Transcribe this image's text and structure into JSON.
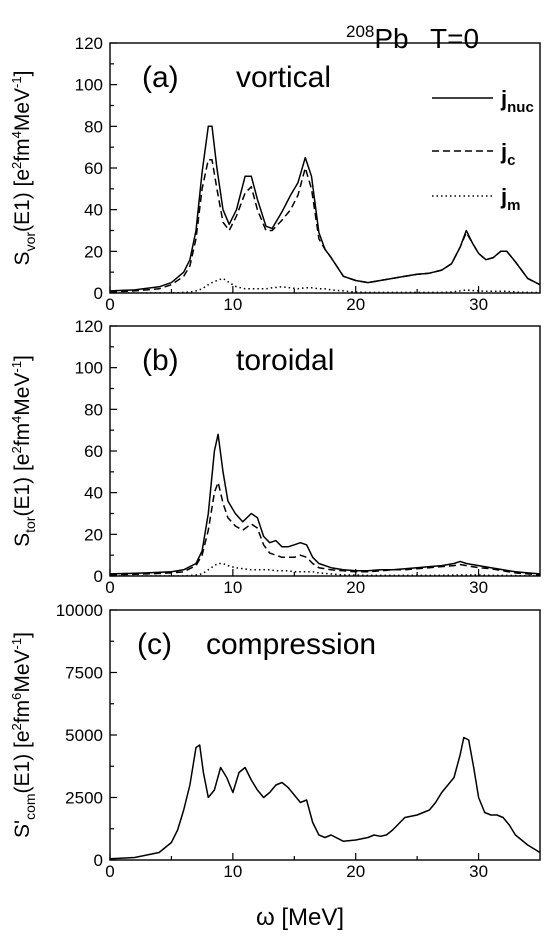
{
  "figure": {
    "title_nucleus_sup": "208",
    "title_nucleus": "Pb",
    "title_temp": "T=0",
    "xlabel": "ω [MeV]"
  },
  "legend": {
    "items": [
      {
        "main": "j",
        "sub": "nuc",
        "style": "solid"
      },
      {
        "main": "j",
        "sub": "c",
        "style": "dashed"
      },
      {
        "main": "j",
        "sub": "m",
        "style": "dotted"
      }
    ]
  },
  "chart_data": [
    {
      "type": "line",
      "panel_label": "(a)",
      "panel_name": "vortical",
      "ylabel": {
        "pre": "S",
        "sub": "vor",
        "mid": "(E1) [e",
        "sup1": "2",
        "mid2": "fm",
        "sup2": "4",
        "mid3": "MeV",
        "sup3": "-1",
        "post": "]"
      },
      "xlim": [
        0,
        35
      ],
      "ylim": [
        0,
        120
      ],
      "xticks": [
        0,
        10,
        20,
        30
      ],
      "yticks": [
        0,
        20,
        40,
        60,
        80,
        100,
        120
      ],
      "x": [
        0,
        2,
        4,
        5,
        6,
        6.5,
        7,
        7.5,
        8,
        8.3,
        8.7,
        9.2,
        9.7,
        10.3,
        11,
        11.5,
        12,
        12.7,
        13.2,
        14,
        14.7,
        15.3,
        15.9,
        16.4,
        17,
        17.5,
        18,
        19,
        20,
        21,
        22,
        23,
        24,
        25,
        26,
        27,
        27.8,
        28.5,
        29,
        29.5,
        30,
        30.6,
        31.2,
        31.8,
        32.3,
        33,
        34,
        35
      ],
      "series": [
        {
          "name": "j_nuc",
          "style": "solid",
          "values": [
            1,
            1.5,
            3,
            5,
            10,
            16,
            30,
            58,
            80,
            80,
            60,
            40,
            33,
            40,
            56,
            56,
            45,
            32,
            31,
            39,
            47,
            53,
            65,
            56,
            29,
            21,
            17,
            8,
            6,
            5,
            6,
            7,
            8,
            9,
            9.5,
            11,
            14,
            22,
            30,
            24,
            19,
            16,
            17,
            20,
            20,
            15,
            7,
            4
          ]
        },
        {
          "name": "j_c",
          "style": "dashed",
          "values": [
            0.5,
            1,
            2,
            4,
            8,
            13,
            26,
            50,
            64,
            64,
            50,
            34,
            30,
            37,
            48,
            51,
            40,
            30,
            30,
            35,
            40,
            47,
            60,
            50,
            26,
            21,
            17,
            8,
            6,
            5,
            6,
            7,
            8,
            9,
            9.5,
            11,
            14,
            22,
            29,
            24,
            19,
            16,
            17,
            20,
            20,
            15,
            7,
            4
          ]
        },
        {
          "name": "j_m",
          "style": "dotted",
          "values": [
            0,
            0,
            0,
            0,
            0.3,
            0.5,
            1,
            2,
            4,
            5,
            6,
            7,
            5,
            3,
            2,
            2,
            2,
            2,
            2.5,
            3,
            2.5,
            2,
            2.5,
            2.5,
            2,
            2,
            1.5,
            1,
            0.5,
            0.3,
            0.3,
            0.3,
            0.3,
            0.3,
            0.3,
            0.3,
            0.5,
            1,
            1.5,
            1.2,
            1,
            0.8,
            0.8,
            0.8,
            0.8,
            0.5,
            0.3,
            0.2
          ]
        }
      ]
    },
    {
      "type": "line",
      "panel_label": "(b)",
      "panel_name": "toroidal",
      "ylabel": {
        "pre": "S",
        "sub": "tor",
        "mid": "(E1) [e",
        "sup1": "2",
        "mid2": "fm",
        "sup2": "4",
        "mid3": "MeV",
        "sup3": "-1",
        "post": "]"
      },
      "xlim": [
        0,
        35
      ],
      "ylim": [
        0,
        120
      ],
      "xticks": [
        0,
        10,
        20,
        30
      ],
      "yticks": [
        0,
        20,
        40,
        60,
        80,
        100,
        120
      ],
      "x": [
        0,
        3,
        5,
        6,
        7,
        7.5,
        8,
        8.5,
        8.8,
        9.2,
        9.6,
        10.2,
        10.8,
        11.5,
        12,
        12.5,
        13,
        13.5,
        14,
        14.5,
        15,
        15.5,
        16,
        16.5,
        17,
        18,
        19,
        20,
        21,
        22,
        23,
        24,
        25,
        26,
        27,
        28,
        28.5,
        29,
        30,
        31,
        32,
        33,
        34,
        35
      ],
      "series": [
        {
          "name": "j_nuc",
          "style": "solid",
          "values": [
            1,
            1.5,
            2,
            3,
            6,
            12,
            30,
            60,
            68,
            50,
            36,
            30,
            26,
            30,
            28,
            19,
            16,
            17,
            14,
            14,
            15,
            16,
            15,
            9,
            6,
            4,
            3,
            2.5,
            2.5,
            3,
            3,
            3.5,
            4,
            4.5,
            5,
            6,
            7,
            6,
            5,
            4,
            3,
            2,
            1.5,
            1
          ]
        },
        {
          "name": "j_c",
          "style": "dashed",
          "values": [
            0.5,
            1,
            1.5,
            2,
            5,
            10,
            22,
            40,
            45,
            35,
            28,
            24,
            22,
            25,
            23,
            15,
            11,
            10,
            9,
            9,
            9,
            10,
            9,
            6,
            4,
            3,
            2.5,
            2,
            2,
            2.5,
            3,
            3,
            3.5,
            4,
            4.5,
            5,
            5.5,
            5,
            4,
            3.5,
            2.5,
            1.5,
            1,
            0.5
          ]
        },
        {
          "name": "j_m",
          "style": "dotted",
          "values": [
            0,
            0,
            0,
            0,
            0.5,
            1,
            3,
            5,
            6,
            6,
            5,
            4,
            3.5,
            3,
            3,
            3,
            3,
            2.5,
            2.5,
            2.5,
            2,
            2,
            2,
            2,
            1.5,
            1,
            0.5,
            0.5,
            0.3,
            0.3,
            0.3,
            0.3,
            0.3,
            0.3,
            0.3,
            0.5,
            0.5,
            0.5,
            0.5,
            0.3,
            0.3,
            0.2,
            0.1,
            0
          ]
        }
      ]
    },
    {
      "type": "line",
      "panel_label": "(c)",
      "panel_name": "compression",
      "ylabel": {
        "pre": "S'",
        "sub": "com",
        "mid": "(E1) [e",
        "sup1": "2",
        "mid2": "fm",
        "sup2": "6",
        "mid3": "MeV",
        "sup3": "-1",
        "post": "]"
      },
      "xlim": [
        0,
        35
      ],
      "ylim": [
        0,
        10000
      ],
      "xticks": [
        0,
        10,
        20,
        30
      ],
      "yticks": [
        0,
        2500,
        5000,
        7500,
        10000
      ],
      "x": [
        0,
        2,
        4,
        5,
        5.5,
        6,
        6.5,
        7,
        7.3,
        7.6,
        8,
        8.5,
        9,
        9.5,
        10,
        10.5,
        11,
        11.5,
        12,
        12.5,
        13,
        13.5,
        14,
        14.5,
        15,
        15.5,
        16,
        16.5,
        17,
        17.5,
        18,
        19,
        20,
        21,
        21.5,
        22,
        22.5,
        23,
        24,
        25,
        26,
        26.5,
        27,
        27.5,
        28,
        28.5,
        28.8,
        29.2,
        29.6,
        30,
        30.5,
        31,
        31.5,
        32,
        32.5,
        33,
        33.5,
        34,
        35
      ],
      "series": [
        {
          "name": "j_nuc",
          "style": "solid",
          "values": [
            50,
            100,
            300,
            700,
            1200,
            2000,
            3000,
            4500,
            4600,
            3500,
            2500,
            2800,
            3700,
            3300,
            2700,
            3500,
            3700,
            3200,
            2800,
            2500,
            2700,
            3000,
            3100,
            2900,
            2600,
            2300,
            2400,
            1500,
            1000,
            900,
            1000,
            750,
            800,
            900,
            1000,
            950,
            1000,
            1200,
            1700,
            1800,
            2000,
            2300,
            2700,
            3000,
            3300,
            4200,
            4900,
            4800,
            3700,
            2500,
            1900,
            1800,
            1800,
            1700,
            1400,
            1000,
            800,
            600,
            300
          ]
        }
      ]
    }
  ]
}
